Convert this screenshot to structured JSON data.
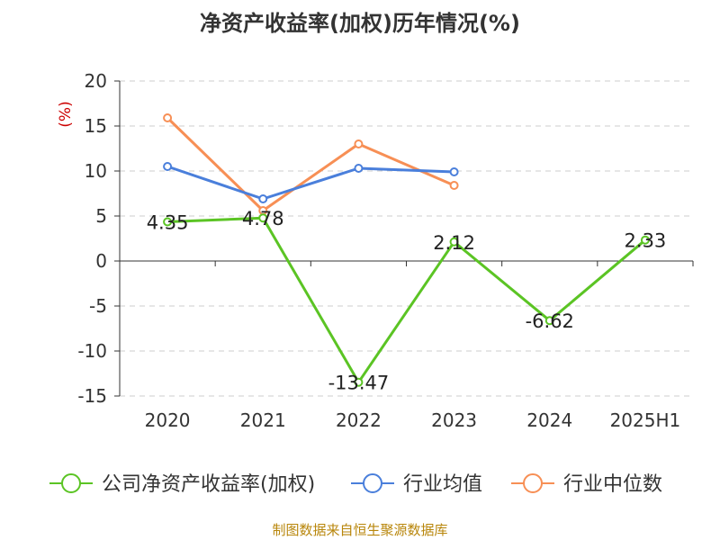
{
  "chart_data": {
    "type": "line",
    "title": "净资产收益率(加权)历年情况(%)",
    "ylabel": "(%)",
    "xlabel": "",
    "categories": [
      "2020",
      "2021",
      "2022",
      "2023",
      "2024",
      "2025H1"
    ],
    "ylim": [
      -15,
      20
    ],
    "yticks": [
      20,
      15,
      10,
      5,
      0,
      -5,
      -10,
      -15
    ],
    "grid": true,
    "legend_position": "bottom",
    "series": [
      {
        "name": "公司净资产收益率(加权)",
        "color": "#5bc424",
        "values": [
          4.35,
          4.78,
          -13.47,
          2.12,
          -6.62,
          2.33
        ],
        "labels": [
          "4.35",
          "4.78",
          "-13.47",
          "2.12",
          "-6.62",
          "2.33"
        ]
      },
      {
        "name": "行业均值",
        "color": "#4a7fdb",
        "values": [
          10.5,
          6.9,
          10.3,
          9.9,
          null,
          null
        ]
      },
      {
        "name": "行业中位数",
        "color": "#f78f55",
        "values": [
          15.9,
          5.6,
          13.0,
          8.4,
          null,
          null
        ]
      }
    ]
  },
  "source": "制图数据来自恒生聚源数据库"
}
